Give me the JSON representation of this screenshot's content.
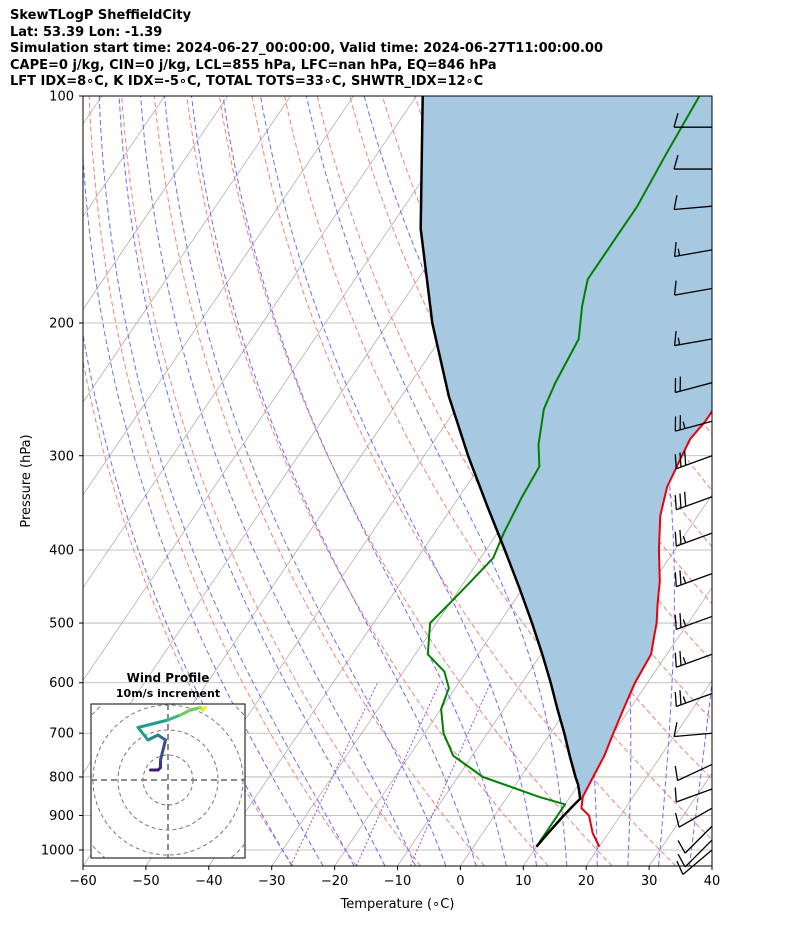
{
  "header": {
    "line1": "SkewTLogP SheffieldCity",
    "line2": "Lat: 53.39   Lon: -1.39",
    "line3": "Simulation start time: 2024-06-27_00:00:00, Valid time: 2024-06-27T11:00:00.00",
    "line4": "CAPE=0 j/kg, CIN=0 j/kg, LCL=855 hPa, LFC=nan hPa, EQ=846 hPa",
    "line5": "LFT IDX=8∘C, K IDX=-5∘C, TOTAL TOTS=33∘C, SHWTR_IDX=12∘C"
  },
  "colors": {
    "temperature": "#e8000b",
    "dewpoint": "#008000",
    "parcel": "#000000",
    "shade": "#a6c8e0",
    "isotherm": "#b0b0b0",
    "dry_adiabat": "#f08080",
    "moist_adiabat": "#6b6bff",
    "mixing_ratio": "#9a4fd0"
  },
  "chart_data": {
    "type": "line",
    "title": "",
    "xlabel": "Temperature (∘C)",
    "ylabel": "Pressure (hPa)",
    "xlim": [
      -60,
      40
    ],
    "ylim": [
      1050,
      100
    ],
    "yscale": "log",
    "skew": true,
    "grid": true,
    "x_ticks": [
      -60,
      -50,
      -40,
      -30,
      -20,
      -10,
      0,
      10,
      20,
      30,
      40
    ],
    "x_tick_labels": [
      "−60",
      "−50",
      "−40",
      "−30",
      "−20",
      "−10",
      "0",
      "10",
      "20",
      "30",
      "40"
    ],
    "y_ticks": [
      100,
      200,
      300,
      400,
      500,
      600,
      700,
      800,
      900,
      1000
    ],
    "y_tick_labels": [
      "100",
      "200",
      "300",
      "400",
      "500",
      "600",
      "700",
      "800",
      "900",
      "1000"
    ],
    "series": [
      {
        "name": "temperature",
        "key": "T",
        "points": [
          [
            990,
            20
          ],
          [
            950,
            17.5
          ],
          [
            900,
            15
          ],
          [
            880,
            13
          ],
          [
            850,
            12
          ],
          [
            800,
            11.5
          ],
          [
            750,
            11
          ],
          [
            700,
            10
          ],
          [
            650,
            9
          ],
          [
            600,
            8
          ],
          [
            550,
            7.5
          ],
          [
            520,
            6
          ],
          [
            500,
            5
          ],
          [
            470,
            3
          ],
          [
            440,
            1
          ],
          [
            400,
            -2.5
          ],
          [
            360,
            -6
          ],
          [
            330,
            -8
          ],
          [
            300,
            -9
          ],
          [
            285,
            -9.5
          ],
          [
            270,
            -9
          ],
          [
            250,
            -9
          ],
          [
            230,
            -10
          ],
          [
            210,
            -10
          ],
          [
            200,
            -10
          ],
          [
            180,
            -12
          ],
          [
            160,
            -15
          ],
          [
            145,
            -17
          ],
          [
            130,
            -18
          ],
          [
            120,
            -21
          ],
          [
            110,
            -23
          ],
          [
            100,
            -25
          ]
        ]
      },
      {
        "name": "dewpoint",
        "key": "Td",
        "points": [
          [
            990,
            10
          ],
          [
            950,
            10
          ],
          [
            900,
            10
          ],
          [
            870,
            10
          ],
          [
            850,
            5
          ],
          [
            800,
            -6
          ],
          [
            750,
            -13
          ],
          [
            700,
            -17
          ],
          [
            650,
            -20
          ],
          [
            610,
            -21
          ],
          [
            580,
            -23.5
          ],
          [
            550,
            -28
          ],
          [
            500,
            -31
          ],
          [
            470,
            -30
          ],
          [
            440,
            -29
          ],
          [
            410,
            -28
          ],
          [
            380,
            -29
          ],
          [
            340,
            -30
          ],
          [
            310,
            -30.5
          ],
          [
            290,
            -33
          ],
          [
            260,
            -36
          ],
          [
            240,
            -37
          ],
          [
            210,
            -38
          ],
          [
            190,
            -41
          ],
          [
            175,
            -43
          ],
          [
            160,
            -43
          ],
          [
            140,
            -43
          ],
          [
            120,
            -44
          ],
          [
            100,
            -45
          ]
        ]
      },
      {
        "name": "parcel",
        "key": "parcel",
        "points": [
          [
            990,
            10
          ],
          [
            950,
            10.4
          ],
          [
            900,
            11
          ],
          [
            870,
            11.5
          ],
          [
            855,
            11.8
          ],
          [
            820,
            10
          ],
          [
            800,
            8.7
          ],
          [
            750,
            5.5
          ],
          [
            700,
            2.2
          ],
          [
            650,
            -1.5
          ],
          [
            600,
            -5.4
          ],
          [
            550,
            -9.8
          ],
          [
            500,
            -14.8
          ],
          [
            450,
            -20.5
          ],
          [
            400,
            -27
          ],
          [
            350,
            -34.5
          ],
          [
            300,
            -43
          ],
          [
            250,
            -52.5
          ],
          [
            200,
            -63
          ],
          [
            150,
            -75
          ],
          [
            100,
            -89
          ]
        ]
      }
    ],
    "wind_barbs": [
      {
        "p": 1000,
        "ws": 10,
        "wd": 230
      },
      {
        "p": 970,
        "ws": 10,
        "wd": 225
      },
      {
        "p": 930,
        "ws": 10,
        "wd": 225
      },
      {
        "p": 880,
        "ws": 10,
        "wd": 240
      },
      {
        "p": 830,
        "ws": 10,
        "wd": 250
      },
      {
        "p": 770,
        "ws": 10,
        "wd": 245
      },
      {
        "p": 700,
        "ws": 10,
        "wd": 265
      },
      {
        "p": 620,
        "ws": 25,
        "wd": 250
      },
      {
        "p": 550,
        "ws": 25,
        "wd": 250
      },
      {
        "p": 490,
        "ws": 25,
        "wd": 250
      },
      {
        "p": 430,
        "ws": 25,
        "wd": 250
      },
      {
        "p": 380,
        "ws": 25,
        "wd": 250
      },
      {
        "p": 340,
        "ws": 30,
        "wd": 250
      },
      {
        "p": 300,
        "ws": 30,
        "wd": 250
      },
      {
        "p": 270,
        "ws": 25,
        "wd": 255
      },
      {
        "p": 240,
        "ws": 20,
        "wd": 255
      },
      {
        "p": 210,
        "ws": 15,
        "wd": 260
      },
      {
        "p": 180,
        "ws": 10,
        "wd": 260
      },
      {
        "p": 160,
        "ws": 15,
        "wd": 260
      },
      {
        "p": 140,
        "ws": 10,
        "wd": 265
      },
      {
        "p": 125,
        "ws": 10,
        "wd": 270
      },
      {
        "p": 110,
        "ws": 10,
        "wd": 270
      }
    ],
    "hodograph": {
      "title": "Wind Profile",
      "subtitle": "10m/s increment",
      "ring_spacing_ms": 10,
      "rings": 4,
      "points": [
        [
          -7,
          4
        ],
        [
          -4,
          4
        ],
        [
          -3,
          5
        ],
        [
          -3,
          8
        ],
        [
          -2,
          12
        ],
        [
          -1,
          16
        ],
        [
          -4,
          18
        ],
        [
          -8,
          16
        ],
        [
          -12,
          21
        ],
        [
          0,
          24
        ],
        [
          5,
          26
        ],
        [
          9,
          28
        ],
        [
          13,
          29
        ],
        [
          14,
          28
        ],
        [
          15,
          29
        ]
      ]
    }
  }
}
